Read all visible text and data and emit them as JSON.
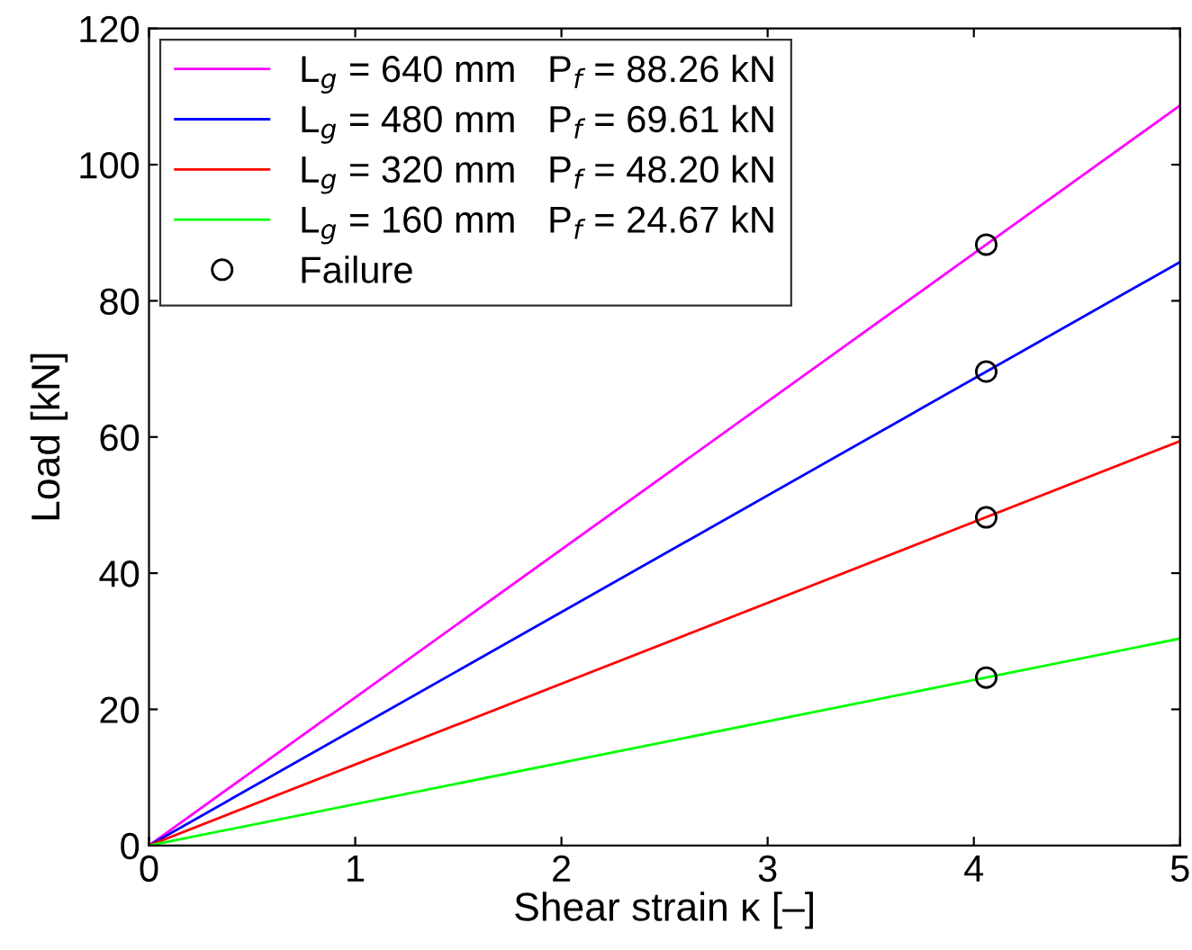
{
  "chart_data": {
    "type": "line",
    "xlabel": "Shear strain κ [–]",
    "ylabel": "Load [kN]",
    "xlim": [
      0,
      5
    ],
    "ylim": [
      0,
      120
    ],
    "xticks": [
      0,
      1,
      2,
      3,
      4,
      5
    ],
    "yticks": [
      0,
      20,
      40,
      60,
      80,
      100,
      120
    ],
    "grid": false,
    "legend": "top left",
    "marker": "none",
    "line_style": "solid",
    "series": [
      {
        "name": "L$_{g}$ = 640 mm   P$_{f}$ = 88.26 kN",
        "color": "#ff00ff",
        "x": [
          0,
          5
        ],
        "values": [
          0,
          108.7
        ]
      },
      {
        "name": "L$_{g}$ = 480 mm   P$_{f}$ = 69.61 kN",
        "color": "#0000ff",
        "x": [
          0,
          5
        ],
        "values": [
          0,
          85.7
        ]
      },
      {
        "name": "L$_{g}$ = 320 mm   P$_{f}$ = 48.20 kN",
        "color": "#ff0000",
        "x": [
          0,
          5
        ],
        "values": [
          0,
          59.4
        ]
      },
      {
        "name": "L$_{g}$ = 160 mm   P$_{f}$ = 24.67 kN",
        "color": "#00ff00",
        "x": [
          0,
          5
        ],
        "values": [
          0,
          30.4
        ]
      },
      {
        "name": "Failure",
        "type": "scatter",
        "marker": "circle",
        "color": "#000000",
        "x": [
          4.06,
          4.06,
          4.06,
          4.06
        ],
        "values": [
          88.26,
          69.61,
          48.2,
          24.67
        ]
      }
    ]
  }
}
